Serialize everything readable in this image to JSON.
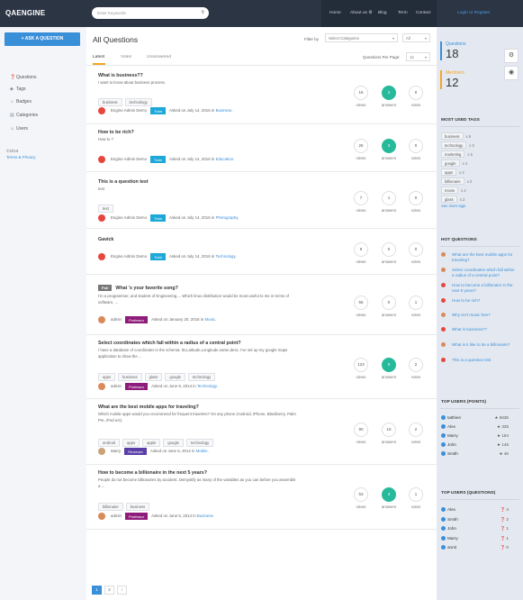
{
  "header": {
    "logo": "QAENGINE",
    "search_placeholder": "Enter Keywords",
    "nav": [
      "Home",
      "About us ⚙",
      "Blog",
      "Term",
      "Contact"
    ],
    "login": "Login or Register"
  },
  "sidebar": {
    "ask_button": "+ ASK A QUESTION",
    "items": [
      {
        "icon": "❓",
        "label": "Questions"
      },
      {
        "icon": "◆",
        "label": "Tags"
      },
      {
        "icon": "☼",
        "label": "Badges"
      },
      {
        "icon": "▤",
        "label": "Categories"
      },
      {
        "icon": "☺",
        "label": "Users"
      }
    ],
    "copyright_year": "©2016",
    "terms": "Terms & Privacy"
  },
  "main": {
    "title": "All Questions",
    "filter_label": "Filter by",
    "category_select": "Select Categories",
    "all_select": "All",
    "tabs": [
      "Latest",
      "Votes",
      "Unanswered"
    ],
    "per_page_label": "Questions Per Page:",
    "per_page_value": "12",
    "views_label": "views",
    "answers_label": "answers",
    "votes_label": "votes",
    "asked_prefix": "Asked on",
    "in_word": "in",
    "questions": [
      {
        "title": "What is business??",
        "excerpt": "I want to know about business process.",
        "tags": [
          "business",
          "technology"
        ],
        "author": "Engine Admin Demo",
        "badge": "Train",
        "date": "July 14, 2016",
        "category": "Business.",
        "views": "16",
        "answers": "2",
        "votes": "0"
      },
      {
        "title": "How to be rich?",
        "excerpt": "How to ?",
        "tags": [],
        "author": "Engine Admin Demo",
        "badge": "Train",
        "date": "July 14, 2016",
        "category": "Education.",
        "views": "26",
        "answers": "3",
        "votes": "0"
      },
      {
        "title": "This is a question test",
        "excerpt": "test",
        "tags": [
          "test"
        ],
        "author": "Engine Admin Demo",
        "badge": "Train",
        "date": "July 14, 2016",
        "category": "Photography.",
        "views": "7",
        "answers": "1",
        "votes": "0"
      },
      {
        "title": "Gavick",
        "excerpt": "",
        "tags": [],
        "author": "Engine Admin Demo",
        "badge": "Train",
        "date": "July 14, 2016",
        "category": "Technology.",
        "views": "9",
        "answers": "0",
        "votes": "0"
      },
      {
        "poll": "Poll",
        "title": "What 's your favorite song?",
        "excerpt": "I'm a programmer, and student of Engineering.... Which linux distribution would be most useful to me in terms of software, ...",
        "tags": [],
        "author": "admin",
        "badge": "Professor",
        "date": "January 20, 2016",
        "category": "Music.",
        "views": "55",
        "answers": "0",
        "votes": "1"
      },
      {
        "title": "Select coordinates which fall within a radius of a central point?",
        "excerpt": "I have a database of coordinates in the schema: ID,Latitude,Longitude,name,desc. I've set up my google maps application to show the ...",
        "tags": [
          "apps",
          "business",
          "glass",
          "google",
          "technology"
        ],
        "author": "admin",
        "badge": "Professor",
        "date": "June 9, 2014",
        "category": "Technology.",
        "views": "123",
        "answers": "0",
        "votes": "2"
      },
      {
        "title": "What are the best mobile apps for traveling?",
        "excerpt": "Which mobile apps would you recommend for frequent travelers? On any phone (Android, iPhone, Blackberry, Palm Pre, iPod ect).",
        "tags": [
          "android",
          "apps",
          "apple",
          "google",
          "technology"
        ],
        "author": "Marry",
        "badge": "Reviewer",
        "date": "June 5, 2014",
        "category": "Mobile.",
        "views": "90",
        "answers": "10",
        "votes": "2"
      },
      {
        "title": "How to become a billionaire in the next 5 years?",
        "excerpt": "People do not become billionaires by accident. Demystify as many of the variables as you can before you assemble a ...",
        "tags": [
          "billionaire",
          "business"
        ],
        "author": "admin",
        "badge": "Professor",
        "date": "June 5, 2014",
        "category": "Business.",
        "views": "53",
        "answers": "3",
        "votes": "1"
      }
    ],
    "pages": [
      "1",
      "2",
      "›"
    ]
  },
  "right": {
    "questions_label": "Questions",
    "questions_count": "18",
    "members_label": "Members",
    "members_count": "12",
    "tags_heading": "MOST USED TAGS",
    "tags": [
      {
        "name": "business",
        "count": "x 6"
      },
      {
        "name": "technology",
        "count": "x 5"
      },
      {
        "name": "marketing",
        "count": "x 5"
      },
      {
        "name": "google",
        "count": "x 4"
      },
      {
        "name": "apps",
        "count": "x 4"
      },
      {
        "name": "billionaire",
        "count": "x 2"
      },
      {
        "name": "movie",
        "count": "x 2"
      },
      {
        "name": "glass",
        "count": "x 2"
      }
    ],
    "see_more": "See more tags",
    "hot_heading": "HOT QUESTIONS",
    "hot": [
      "What are the best mobile apps for traveling?",
      "Select coordinates which fall within a radius of a central point?",
      "How to become a billionaire in the next 5 years?",
      "How to be rich?",
      "Why isn't music free?",
      "What is business??",
      "What is it like to be a billionaire?",
      "This is a question test"
    ],
    "top_points_heading": "TOP USERS (POINTS)",
    "top_points": [
      {
        "name": "tatthien",
        "value": "★ 5636"
      },
      {
        "name": "Alex",
        "value": "★ 335"
      },
      {
        "name": "Marry",
        "value": "★ 184"
      },
      {
        "name": "John",
        "value": "★ 146"
      },
      {
        "name": "Smith",
        "value": "★ 46"
      }
    ],
    "top_q_heading": "TOP USERS (QUESTIONS)",
    "top_q": [
      {
        "name": "Alex",
        "value": "❓ 4"
      },
      {
        "name": "Smith",
        "value": "❓ 2"
      },
      {
        "name": "John",
        "value": "❓ 1"
      },
      {
        "name": "Marry",
        "value": "❓ 1"
      },
      {
        "name": "annit",
        "value": "❓ 0"
      }
    ]
  },
  "colors": {
    "accent": "#3a8fd9",
    "green": "#26b99a",
    "train": "#1ea8d8",
    "professor": "#8e1c7a",
    "reviewer": "#5b3ea8"
  }
}
